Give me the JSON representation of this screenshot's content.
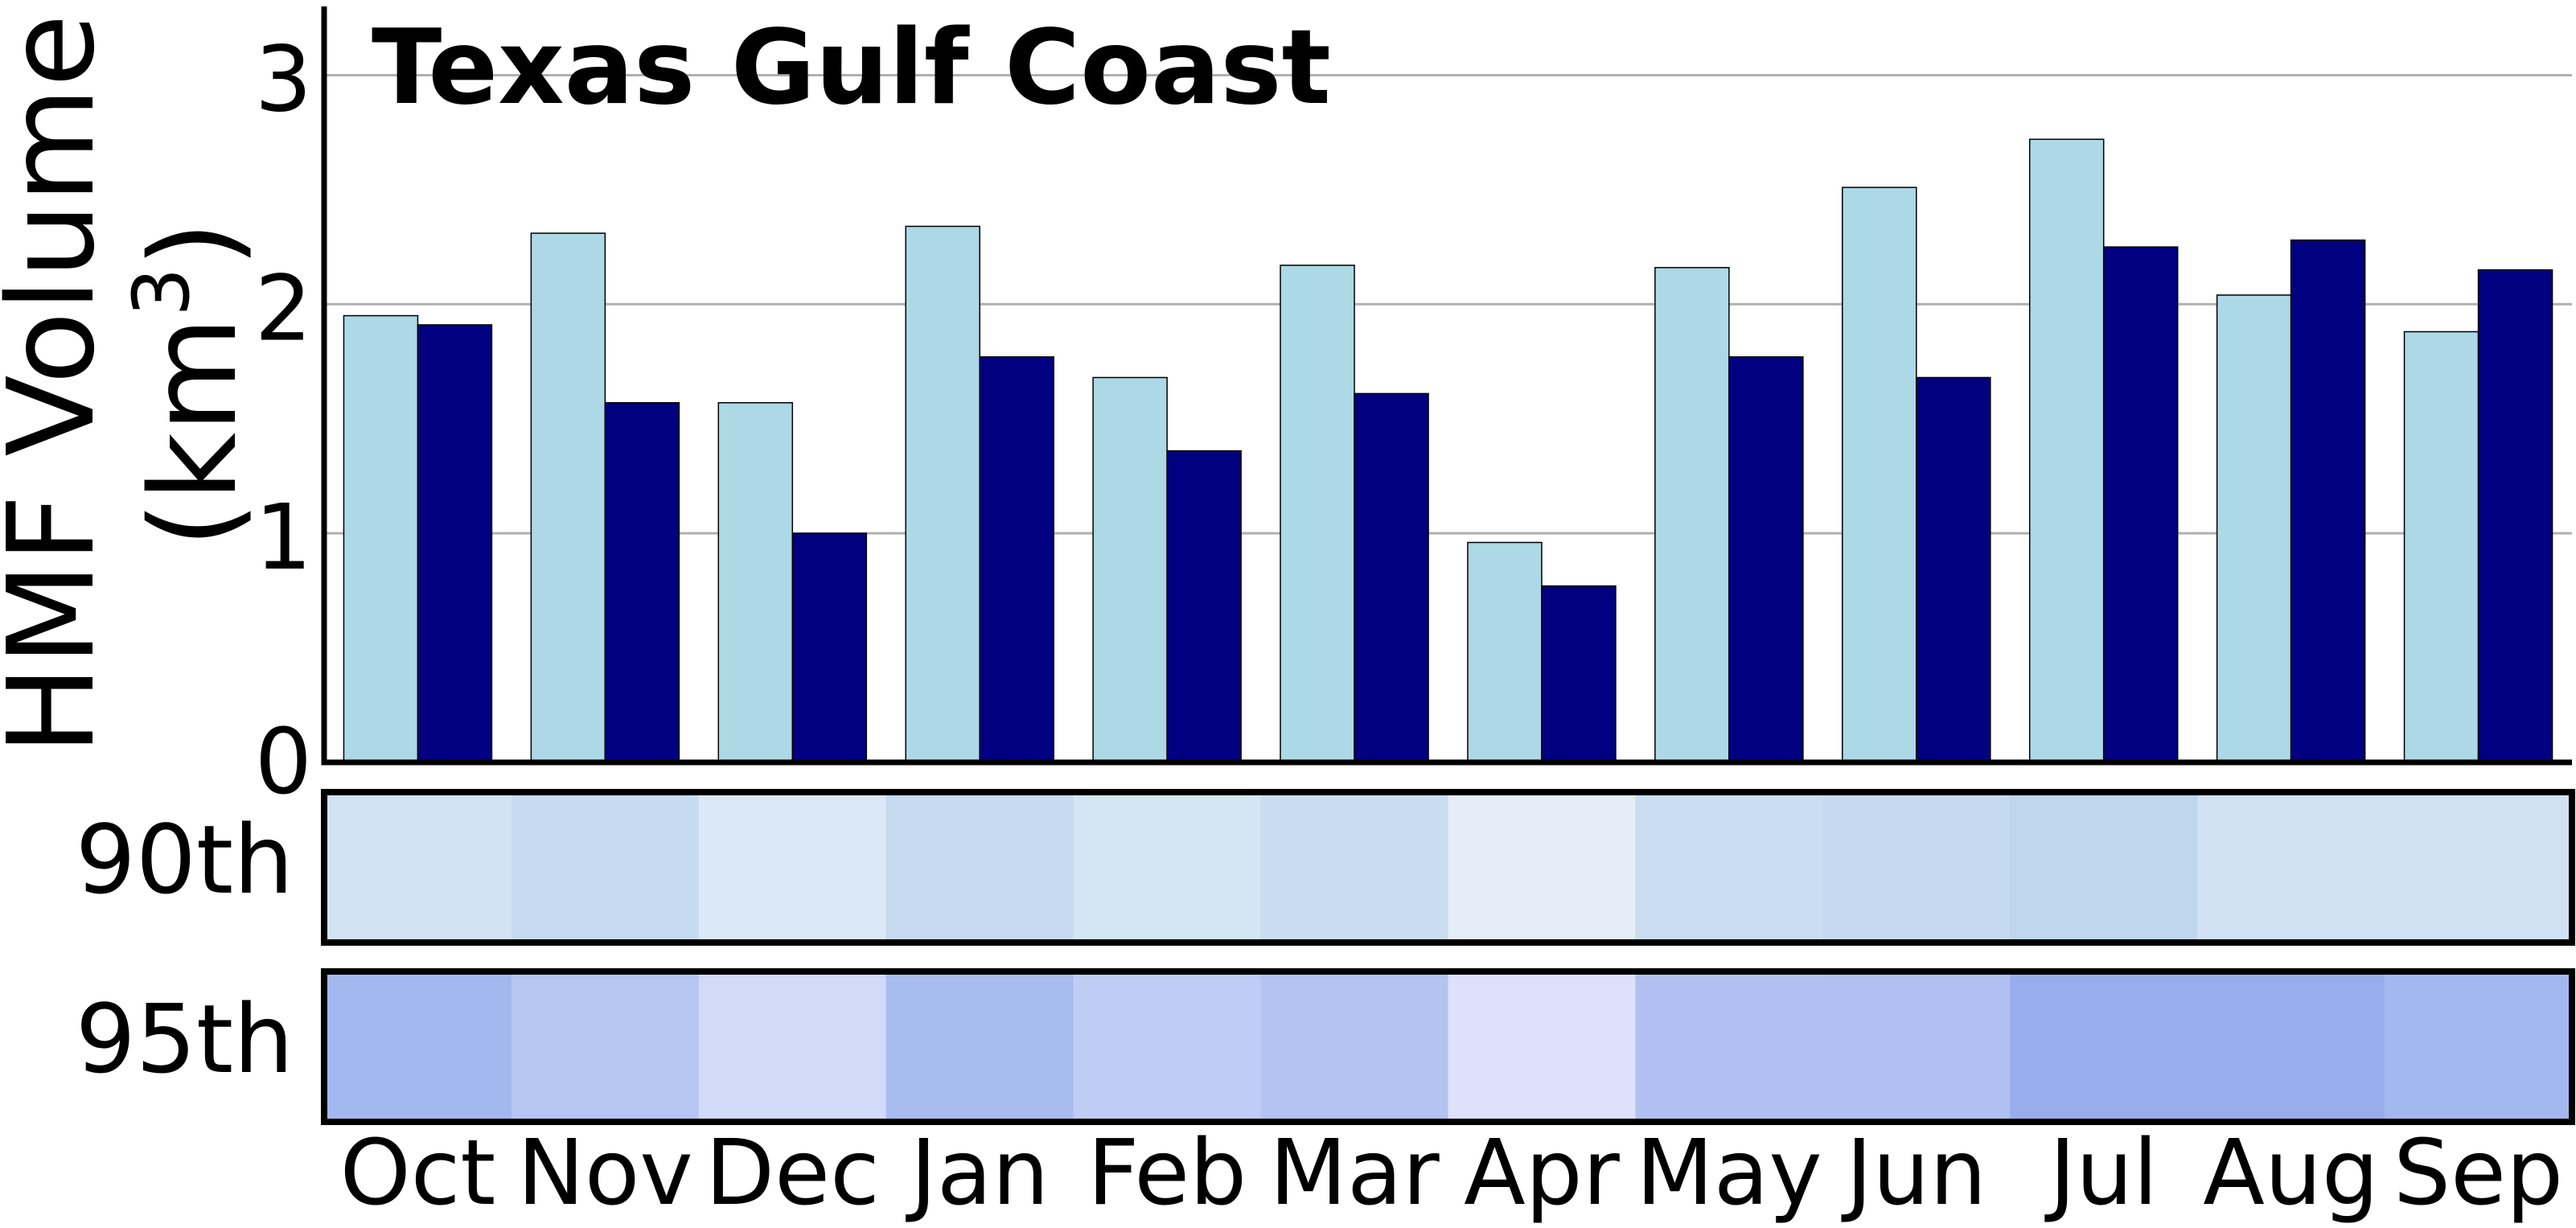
{
  "chart_data": {
    "type": "bar",
    "title": "Texas Gulf Coast",
    "ylabel_line1": "HMF Volume",
    "ylabel_line2_base": "(km",
    "ylabel_line2_sup": "3",
    "ylabel_line2_end": ")",
    "ylim": [
      0,
      3.3
    ],
    "yticks": [
      {
        "value": 0,
        "label": "0"
      },
      {
        "value": 1,
        "label": "1"
      },
      {
        "value": 2,
        "label": "2"
      },
      {
        "value": 3,
        "label": "3"
      }
    ],
    "grid": true,
    "categories": [
      "Oct",
      "Nov",
      "Dec",
      "Jan",
      "Feb",
      "Mar",
      "Apr",
      "May",
      "Jun",
      "Jul",
      "Aug",
      "Sep"
    ],
    "series": [
      {
        "color": "#add8e6",
        "values": [
          1.95,
          2.31,
          1.57,
          2.34,
          1.68,
          2.17,
          0.96,
          2.16,
          2.51,
          2.72,
          2.04,
          1.88
        ]
      },
      {
        "color": "#000080",
        "values": [
          1.91,
          1.57,
          1.0,
          1.77,
          1.36,
          1.61,
          0.77,
          1.77,
          1.68,
          2.25,
          2.28,
          2.15
        ]
      }
    ],
    "heatmap_rows": [
      {
        "label": "90th",
        "colors": [
          "#d3e3f3",
          "#c7dbf0",
          "#dbe8f6",
          "#c7daf0",
          "#d6e5f4",
          "#cadcef",
          "#e4edf8",
          "#cbddf0",
          "#c6daef",
          "#bfd6ed",
          "#d1e1f3",
          "#d1e1f3"
        ]
      },
      {
        "label": "95th",
        "colors": [
          "#a4b8f0",
          "#b5c6f2",
          "#d1daf6",
          "#a8bcf0",
          "#bfcdf4",
          "#b3c3f2",
          "#dde2fa",
          "#b0c1f1",
          "#afc0f1",
          "#98aeec",
          "#98aeec",
          "#a4b8f0"
        ]
      }
    ]
  }
}
